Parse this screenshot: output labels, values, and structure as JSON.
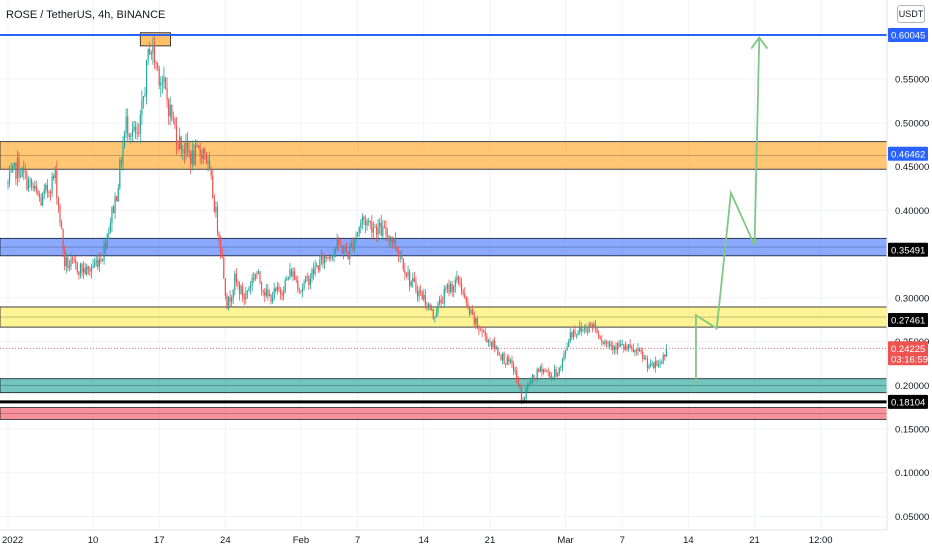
{
  "header": {
    "title": "ROSE / TetherUS, 4h, BINANCE",
    "unit": "USDT"
  },
  "colors": {
    "up": "#26a69a",
    "down": "#ef5350",
    "orange": "#ff9800",
    "blue": "#2962ff",
    "yellow": "#ffeb3b",
    "teal": "#009688",
    "red": "#f23645",
    "arrow": "#81c784",
    "grid": "#f0f3fa"
  },
  "chart_data": {
    "type": "candlestick",
    "title": "ROSE / TetherUS, 4h, BINANCE",
    "ylabel": "USDT",
    "ylim": [
      0.04,
      0.625
    ],
    "y_ticks": [
      {
        "value": 0.55,
        "label": "0.55000"
      },
      {
        "value": 0.5,
        "label": "0.50000"
      },
      {
        "value": 0.45,
        "label": "0.45000"
      },
      {
        "value": 0.4,
        "label": "0.40000"
      },
      {
        "value": 0.3,
        "label": "0.30000"
      },
      {
        "value": 0.25,
        "label": "0.25000"
      },
      {
        "value": 0.2,
        "label": "0.20000"
      },
      {
        "value": 0.15,
        "label": "0.15000"
      },
      {
        "value": 0.1,
        "label": "0.10000"
      },
      {
        "value": 0.05,
        "label": "0.05000"
      }
    ],
    "x_ticks": [
      {
        "day": 0,
        "label": "2022"
      },
      {
        "day": 9,
        "label": "10"
      },
      {
        "day": 16,
        "label": "17"
      },
      {
        "day": 23,
        "label": "24"
      },
      {
        "day": 31,
        "label": "Feb"
      },
      {
        "day": 37,
        "label": "7"
      },
      {
        "day": 44,
        "label": "14"
      },
      {
        "day": 51,
        "label": "21"
      },
      {
        "day": 59,
        "label": "Mar"
      },
      {
        "day": 65,
        "label": "7"
      },
      {
        "day": 72,
        "label": "14"
      },
      {
        "day": 79,
        "label": "21"
      },
      {
        "day": 86,
        "label": "12:00"
      }
    ],
    "price_path": [
      [
        0.0,
        0.43
      ],
      [
        1.0,
        0.45
      ],
      [
        3.5,
        0.41
      ],
      [
        5.0,
        0.44
      ],
      [
        6.0,
        0.34
      ],
      [
        8.5,
        0.33
      ],
      [
        10.0,
        0.35
      ],
      [
        11.5,
        0.42
      ],
      [
        12.5,
        0.5
      ],
      [
        13.8,
        0.48
      ],
      [
        15.0,
        0.59
      ],
      [
        16.5,
        0.54
      ],
      [
        18.0,
        0.48
      ],
      [
        19.5,
        0.46
      ],
      [
        20.8,
        0.47
      ],
      [
        21.5,
        0.43
      ],
      [
        22.5,
        0.36
      ],
      [
        23.2,
        0.29
      ],
      [
        24.0,
        0.32
      ],
      [
        25.0,
        0.3
      ],
      [
        26.2,
        0.33
      ],
      [
        27.5,
        0.3
      ],
      [
        29.0,
        0.31
      ],
      [
        30.0,
        0.33
      ],
      [
        31.0,
        0.31
      ],
      [
        33.0,
        0.34
      ],
      [
        35.0,
        0.36
      ],
      [
        36.0,
        0.35
      ],
      [
        37.5,
        0.39
      ],
      [
        39.0,
        0.38
      ],
      [
        40.5,
        0.37
      ],
      [
        41.5,
        0.35
      ],
      [
        42.5,
        0.32
      ],
      [
        44.0,
        0.3
      ],
      [
        45.0,
        0.28
      ],
      [
        46.5,
        0.31
      ],
      [
        47.8,
        0.32
      ],
      [
        48.5,
        0.29
      ],
      [
        49.5,
        0.27
      ],
      [
        51.0,
        0.25
      ],
      [
        52.5,
        0.23
      ],
      [
        53.5,
        0.22
      ],
      [
        54.5,
        0.18
      ],
      [
        55.0,
        0.2
      ],
      [
        56.5,
        0.22
      ],
      [
        57.5,
        0.21
      ],
      [
        58.5,
        0.22
      ],
      [
        59.5,
        0.26
      ],
      [
        61.0,
        0.265
      ],
      [
        62.0,
        0.27
      ],
      [
        63.0,
        0.25
      ],
      [
        64.5,
        0.245
      ],
      [
        66.0,
        0.24
      ],
      [
        67.0,
        0.235
      ],
      [
        68.0,
        0.22
      ],
      [
        69.0,
        0.225
      ],
      [
        69.8,
        0.2423
      ]
    ],
    "zones": [
      {
        "name": "orange-zone",
        "from": 0.447,
        "to": 0.4785,
        "color": "orange",
        "label": "0.46462"
      },
      {
        "name": "blue-zone",
        "from": 0.348,
        "to": 0.368,
        "color": "blue",
        "label": "0.35491"
      },
      {
        "name": "yellow-zone",
        "from": 0.2665,
        "to": 0.2895,
        "color": "yellow",
        "label": "0.27461"
      },
      {
        "name": "teal-zone",
        "from": 0.1915,
        "to": 0.2075,
        "color": "teal",
        "label": ""
      },
      {
        "name": "red-zone",
        "from": 0.161,
        "to": 0.1745,
        "color": "red",
        "label": ""
      }
    ],
    "lines": [
      {
        "name": "top-blue-line",
        "value": 0.60045,
        "color": "blue",
        "label": "0.60045"
      },
      {
        "name": "black-line",
        "value": 0.18104,
        "color": "black",
        "label": "0.18104"
      }
    ],
    "top_marker": {
      "from_day": 14.0,
      "to_day": 17.2,
      "from": 0.588,
      "to": 0.603
    },
    "current_price": {
      "value": 0.24225,
      "label": "0.24225",
      "countdown": "03:16:59"
    },
    "projection": [
      [
        72.8,
        0.2
      ],
      [
        72.8,
        0.28
      ],
      [
        75.0,
        0.265
      ],
      [
        76.5,
        0.42
      ],
      [
        79.0,
        0.36
      ],
      [
        79.5,
        0.5975
      ]
    ]
  }
}
